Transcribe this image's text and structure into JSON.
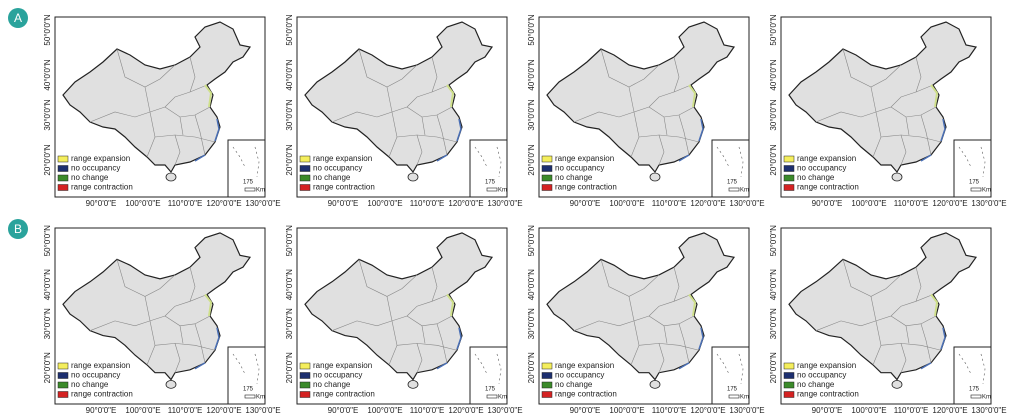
{
  "panels": {
    "rows": [
      {
        "label": "A"
      },
      {
        "label": "B"
      }
    ]
  },
  "map": {
    "lat_labels": [
      "50°0'0\"N",
      "40°0'0\"N",
      "30°0'0\"N",
      "20°0'0\"N"
    ],
    "lon_labels": [
      "90°0'0\"E",
      "100°0'0\"E",
      "110°0'0\"E",
      "120°0'0\"E",
      "130°0'0\"E"
    ],
    "legend": [
      {
        "label": "range expansion",
        "color": "#f4ee5c"
      },
      {
        "label": "no occupancy",
        "color": "#1d2f6f"
      },
      {
        "label": "no change",
        "color": "#3b8a2a"
      },
      {
        "label": "range contraction",
        "color": "#d42222"
      }
    ],
    "scale": {
      "value": "175",
      "unit": "Km"
    }
  }
}
